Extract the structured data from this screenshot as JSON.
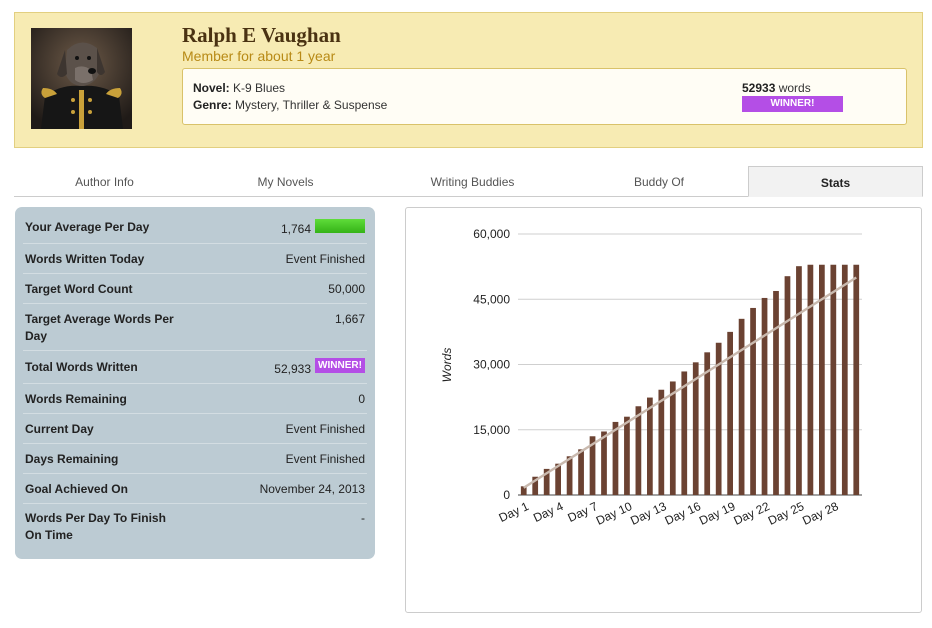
{
  "profile": {
    "name": "Ralph E Vaughan",
    "member_since": "Member for about 1 year",
    "novel_label": "Novel:",
    "novel_title": "K-9 Blues",
    "genre_label": "Genre:",
    "genre": "Mystery, Thriller & Suspense",
    "word_count": "52933",
    "word_unit": "words",
    "badge": "WINNER!"
  },
  "tabs": [
    {
      "label": "Author Info"
    },
    {
      "label": "My Novels"
    },
    {
      "label": "Writing Buddies"
    },
    {
      "label": "Buddy Of"
    },
    {
      "label": "Stats"
    }
  ],
  "stats": [
    {
      "label": "Your Average Per Day",
      "value": "1,764"
    },
    {
      "label": "Words Written Today",
      "value": "Event Finished"
    },
    {
      "label": "Target Word Count",
      "value": "50,000"
    },
    {
      "label": "Target Average Words Per Day",
      "value": "1,667"
    },
    {
      "label": "Total Words Written",
      "value": "52,933",
      "badge": "WINNER!"
    },
    {
      "label": "Words Remaining",
      "value": "0"
    },
    {
      "label": "Current Day",
      "value": "Event Finished"
    },
    {
      "label": "Days Remaining",
      "value": "Event Finished"
    },
    {
      "label": "Goal Achieved On",
      "value": "November 24, 2013"
    },
    {
      "label": "Words Per Day To Finish On Time",
      "value": "-"
    }
  ],
  "colors": {
    "bar": "#6b4232",
    "target_line": "#c9b9ae",
    "winner": "#b44ee6",
    "average_bar": "#34b317"
  },
  "chart_data": {
    "type": "bar",
    "ylabel": "Words",
    "ylim": [
      0,
      60000
    ],
    "yticks": [
      "0",
      "15,000",
      "30,000",
      "45,000",
      "60,000"
    ],
    "ytick_values": [
      0,
      15000,
      30000,
      45000,
      60000
    ],
    "x_tick_labels": [
      "Day 1",
      "Day 4",
      "Day 7",
      "Day 10",
      "Day 13",
      "Day 16",
      "Day 19",
      "Day 22",
      "Day 25",
      "Day 28"
    ],
    "categories": [
      "Day 1",
      "Day 2",
      "Day 3",
      "Day 4",
      "Day 5",
      "Day 6",
      "Day 7",
      "Day 8",
      "Day 9",
      "Day 10",
      "Day 11",
      "Day 12",
      "Day 13",
      "Day 14",
      "Day 15",
      "Day 16",
      "Day 17",
      "Day 18",
      "Day 19",
      "Day 20",
      "Day 21",
      "Day 22",
      "Day 23",
      "Day 24",
      "Day 25",
      "Day 26",
      "Day 27",
      "Day 28",
      "Day 29",
      "Day 30"
    ],
    "series": [
      {
        "type": "bar",
        "values": [
          2000,
          4200,
          6000,
          7200,
          8900,
          10500,
          13500,
          14600,
          16800,
          18000,
          20400,
          22400,
          24200,
          26100,
          28400,
          30500,
          32800,
          35000,
          37500,
          40500,
          43000,
          45300,
          46900,
          50300,
          52600,
          52933,
          52933,
          52933,
          52933,
          52933
        ]
      },
      {
        "type": "line",
        "values": [
          1667,
          3333,
          5000,
          6667,
          8333,
          10000,
          11667,
          13333,
          15000,
          16667,
          18333,
          20000,
          21667,
          23333,
          25000,
          26667,
          28333,
          30000,
          31667,
          33333,
          35000,
          36667,
          38333,
          40000,
          41667,
          43333,
          45000,
          46667,
          48333,
          50000
        ]
      }
    ],
    "grid": true,
    "legend": "none"
  }
}
